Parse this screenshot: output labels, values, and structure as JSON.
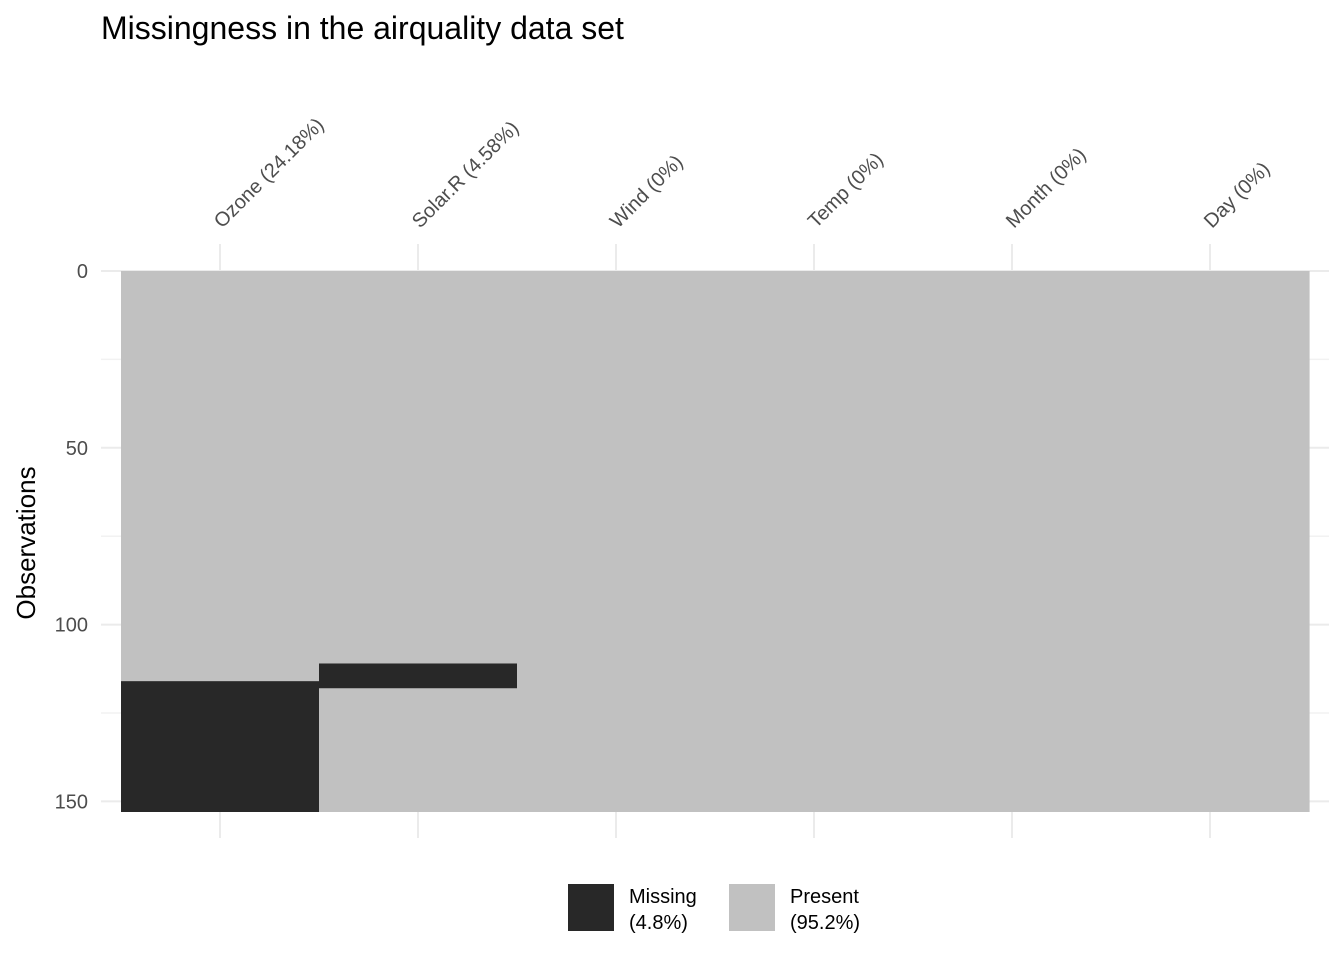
{
  "chart_data": {
    "type": "heatmap",
    "title": "Missingness in the airquality data set",
    "ylabel": "Observations",
    "xlabel": "",
    "n_observations": 153,
    "ylim": [
      0,
      153
    ],
    "y_ticks": [
      "0",
      "50",
      "100",
      "150"
    ],
    "y_tick_values": [
      0,
      50,
      100,
      150
    ],
    "grid": true,
    "columns": [
      {
        "name": "Ozone (24.18%)",
        "missing_rows": [
          116,
          153
        ]
      },
      {
        "name": "Solar.R (4.58%)",
        "missing_rows": [
          111,
          118
        ]
      },
      {
        "name": "Wind (0%)",
        "missing_rows": null
      },
      {
        "name": "Temp (0%)",
        "missing_rows": null
      },
      {
        "name": "Month (0%)",
        "missing_rows": null
      },
      {
        "name": "Day (0%)",
        "missing_rows": null
      }
    ],
    "colors": {
      "missing": "#282828",
      "present": "#c1c1c1"
    },
    "legend": {
      "position": "bottom",
      "entries": [
        {
          "label": "Missing",
          "pct": "(4.8%)",
          "color": "#282828"
        },
        {
          "label": "Present",
          "pct": "(95.2%)",
          "color": "#c1c1c1"
        }
      ]
    }
  }
}
